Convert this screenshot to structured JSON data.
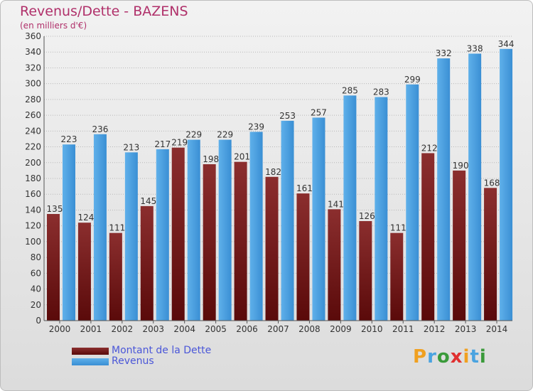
{
  "header": {
    "title": "Revenus/Dette - BAZENS",
    "subtitle": "(en milliers d'€)"
  },
  "legend": {
    "debt_label": "Montant de la Dette",
    "revenue_label": "Revenus"
  },
  "logo": {
    "text": "Proxiti",
    "letters": [
      "P",
      "r",
      "o",
      "x",
      "i",
      "t",
      "i"
    ],
    "colors": [
      "#f0a020",
      "#4aa3e0",
      "#3a9a3a",
      "#e03030",
      "#f0a020",
      "#4aa3e0",
      "#3a9a3a"
    ]
  },
  "colors": {
    "debt_top": "#8b2e2e",
    "debt_bottom": "#5a0a0a",
    "revenue_top": "#5fb0ea",
    "revenue_bottom": "#3a8fd4",
    "title": "#b0306a"
  },
  "chart_data": {
    "type": "bar",
    "title": "Revenus/Dette - BAZENS",
    "subtitle": "(en milliers d'€)",
    "categories": [
      "2000",
      "2001",
      "2002",
      "2003",
      "2004",
      "2005",
      "2006",
      "2007",
      "2008",
      "2009",
      "2010",
      "2011",
      "2012",
      "2013",
      "2014"
    ],
    "series": [
      {
        "name": "Montant de la Dette",
        "values": [
          135,
          124,
          111,
          145,
          219,
          198,
          201,
          182,
          161,
          141,
          126,
          111,
          212,
          190,
          168
        ]
      },
      {
        "name": "Revenus",
        "values": [
          223,
          236,
          213,
          217,
          229,
          229,
          239,
          253,
          257,
          285,
          283,
          299,
          332,
          338,
          344
        ]
      }
    ],
    "ylim": [
      0,
      360
    ],
    "yticks": [
      0,
      20,
      40,
      60,
      80,
      100,
      120,
      140,
      160,
      180,
      200,
      220,
      240,
      260,
      280,
      300,
      320,
      340,
      360
    ],
    "grid": true,
    "legend_position": "bottom-left"
  }
}
